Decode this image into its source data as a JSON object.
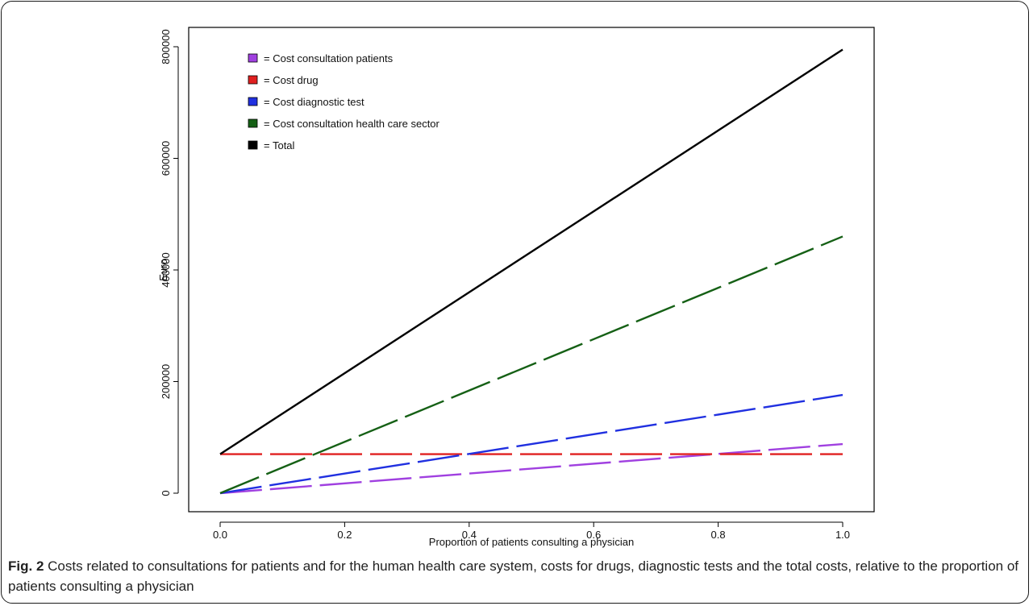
{
  "caption": {
    "label": "Fig. 2",
    "text": "Costs related to consultations for patients and for the human health care system, costs for drugs, diagnostic tests and the total costs, relative to the proportion of patients consulting a physician"
  },
  "chart_data": {
    "type": "line",
    "title": "",
    "xlabel": "Proportion of patients consulting a physician",
    "ylabel": "Euro",
    "xlim": [
      0,
      1
    ],
    "ylim": [
      0,
      800000
    ],
    "xticks": [
      0,
      0.2,
      0.4,
      0.6,
      0.8,
      1
    ],
    "xtick_labels": [
      "0.0",
      "0.2",
      "0.4",
      "0.6",
      "0.8",
      "1.0"
    ],
    "yticks": [
      0,
      200000,
      400000,
      600000,
      800000
    ],
    "ytick_labels": [
      "0",
      "200000",
      "400000",
      "600000",
      "800000"
    ],
    "legend_position": "top-left",
    "grid": false,
    "series": [
      {
        "name": "= Cost consultation patients",
        "color": "#a040e0",
        "style": "dashed",
        "x": [
          0,
          1
        ],
        "y": [
          0,
          88000
        ]
      },
      {
        "name": "= Cost drug",
        "color": "#e02020",
        "style": "dashed",
        "x": [
          0,
          1
        ],
        "y": [
          70000,
          70000
        ]
      },
      {
        "name": "= Cost diagnostic test",
        "color": "#2030e0",
        "style": "dashed",
        "x": [
          0,
          1
        ],
        "y": [
          0,
          176000
        ]
      },
      {
        "name": "= Cost consultation health care sector",
        "color": "#156015",
        "style": "dashed",
        "x": [
          0,
          1
        ],
        "y": [
          0,
          460000
        ]
      },
      {
        "name": "= Total",
        "color": "#000000",
        "style": "solid",
        "x": [
          0,
          1
        ],
        "y": [
          70000,
          795000
        ]
      }
    ]
  }
}
